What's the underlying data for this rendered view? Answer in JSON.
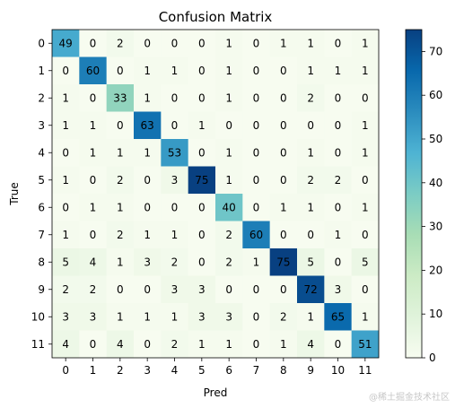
{
  "chart_data": {
    "type": "heatmap",
    "title": "Confusion Matrix",
    "xlabel": "Pred",
    "ylabel": "True",
    "x_ticks": [
      "0",
      "1",
      "2",
      "3",
      "4",
      "5",
      "6",
      "7",
      "8",
      "9",
      "10",
      "11"
    ],
    "y_ticks": [
      "0",
      "1",
      "2",
      "3",
      "4",
      "5",
      "6",
      "7",
      "8",
      "9",
      "10",
      "11"
    ],
    "values": [
      [
        49,
        0,
        2,
        0,
        0,
        0,
        1,
        0,
        1,
        1,
        0,
        1
      ],
      [
        0,
        60,
        0,
        1,
        1,
        0,
        1,
        0,
        0,
        1,
        1,
        1
      ],
      [
        1,
        0,
        33,
        1,
        0,
        0,
        1,
        0,
        0,
        2,
        0,
        0
      ],
      [
        1,
        1,
        0,
        63,
        0,
        1,
        0,
        0,
        0,
        0,
        0,
        1
      ],
      [
        0,
        1,
        1,
        1,
        53,
        0,
        1,
        0,
        0,
        1,
        0,
        1
      ],
      [
        1,
        0,
        2,
        0,
        3,
        75,
        1,
        0,
        0,
        2,
        2,
        0
      ],
      [
        0,
        1,
        1,
        0,
        0,
        0,
        40,
        0,
        1,
        1,
        0,
        1
      ],
      [
        1,
        0,
        2,
        1,
        1,
        0,
        2,
        60,
        0,
        0,
        1,
        0
      ],
      [
        5,
        4,
        1,
        3,
        2,
        0,
        2,
        1,
        75,
        5,
        0,
        5
      ],
      [
        2,
        2,
        0,
        0,
        3,
        3,
        0,
        0,
        0,
        72,
        3,
        0
      ],
      [
        3,
        3,
        1,
        1,
        1,
        3,
        3,
        0,
        2,
        1,
        65,
        1
      ],
      [
        4,
        0,
        4,
        0,
        2,
        1,
        1,
        0,
        1,
        4,
        0,
        51
      ]
    ],
    "colormap": "GnBu",
    "vmin": 0,
    "vmax": 75,
    "colorbar_ticks": [
      0,
      10,
      20,
      30,
      40,
      50,
      60,
      70
    ]
  },
  "watermark": "@稀土掘金技术社区"
}
